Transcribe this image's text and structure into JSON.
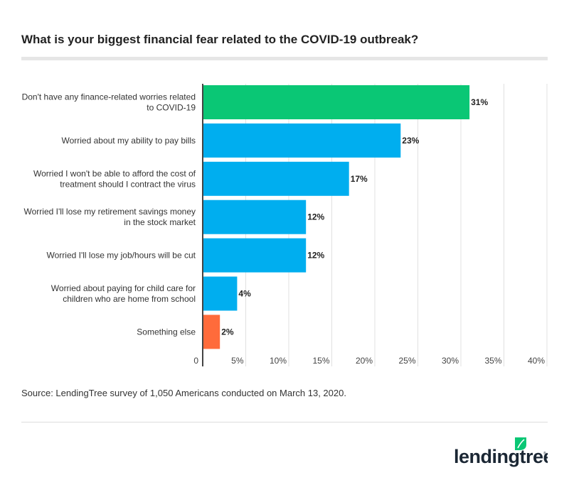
{
  "title": "What is your biggest financial fear related to the COVID-19 outbreak?",
  "source": "Source: LendingTree survey of 1,050 Americans conducted on March 13, 2020.",
  "logo": {
    "text": "lendingtree",
    "icon": "leaf-icon",
    "color": "#0ac775"
  },
  "chart_data": {
    "type": "bar",
    "orientation": "horizontal",
    "categories": [
      [
        "Don't have any finance-related worries related",
        "to COVID-19"
      ],
      [
        "Worried about my ability to pay bills"
      ],
      [
        "Worried I won't be able to afford the cost of",
        "treatment should I contract the virus"
      ],
      [
        "Worried I'll lose my retirement savings money",
        "in the stock market"
      ],
      [
        "Worried I'll lose my job/hours will be cut"
      ],
      [
        "Worried about paying for child care for",
        "children who are home from school"
      ],
      [
        "Something else"
      ]
    ],
    "values": [
      31,
      23,
      17,
      12,
      12,
      4,
      2
    ],
    "data_labels": [
      "31%",
      "23%",
      "17%",
      "12%",
      "12%",
      "4%",
      "2%"
    ],
    "colors": [
      "#0ac775",
      "#00aeef",
      "#00aeef",
      "#00aeef",
      "#00aeef",
      "#00aeef",
      "#ff6b3b"
    ],
    "xlim": [
      0,
      40
    ],
    "xticks": [
      0,
      5,
      10,
      15,
      20,
      25,
      30,
      35,
      40
    ],
    "xtick_labels": [
      "0",
      "5%",
      "10%",
      "15%",
      "20%",
      "25%",
      "30%",
      "35%",
      "40%"
    ],
    "grid": true
  }
}
